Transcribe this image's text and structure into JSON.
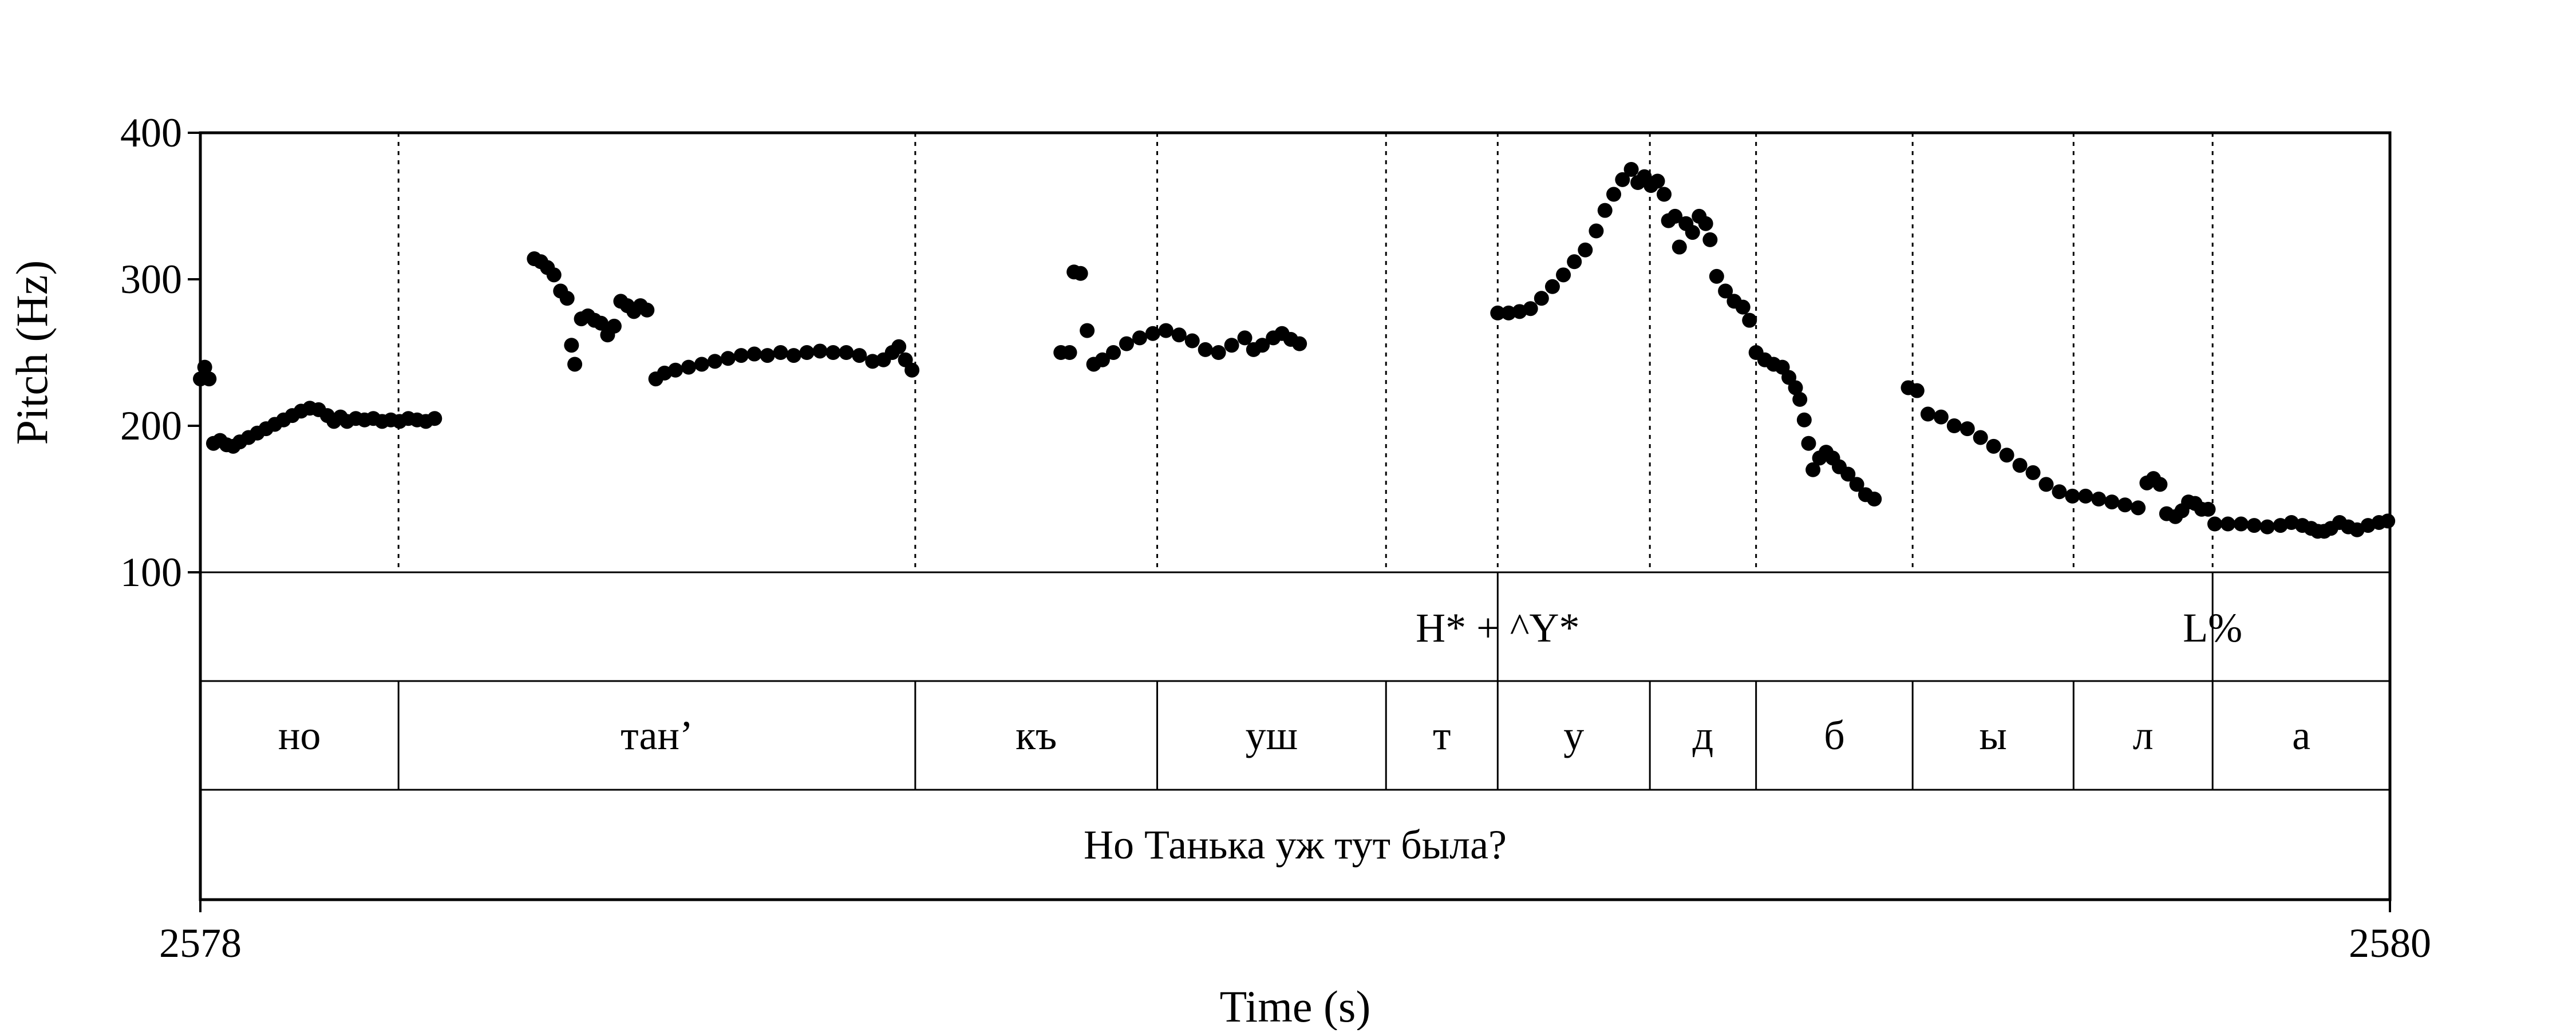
{
  "chart_data": {
    "type": "scatter",
    "title": "",
    "xlabel": "Time (s)",
    "ylabel": "Pitch (Hz)",
    "xlim": [
      2578,
      2580
    ],
    "ylim": [
      100,
      400
    ],
    "x_ticks": [
      "2578",
      "2580"
    ],
    "y_ticks": [
      "100",
      "200",
      "300",
      "400"
    ],
    "grid": false,
    "boundaries": [
      2578.181,
      2578.653,
      2578.874,
      2579.083,
      2579.185,
      2579.324,
      2579.421,
      2579.564,
      2579.711,
      2579.838
    ],
    "tiers": {
      "tones": [
        {
          "label": "H* + ^Y*",
          "x": 2579.185
        },
        {
          "label": "L%",
          "x": 2579.838
        }
      ],
      "segments": [
        {
          "label": "но",
          "start": 2578.0,
          "end": 2578.181
        },
        {
          "label": "тан’",
          "start": 2578.181,
          "end": 2578.653
        },
        {
          "label": "къ",
          "start": 2578.653,
          "end": 2578.874
        },
        {
          "label": "уш",
          "start": 2578.874,
          "end": 2579.083
        },
        {
          "label": "т",
          "start": 2579.083,
          "end": 2579.185
        },
        {
          "label": "у",
          "start": 2579.185,
          "end": 2579.324
        },
        {
          "label": "д",
          "start": 2579.324,
          "end": 2579.421
        },
        {
          "label": "б",
          "start": 2579.421,
          "end": 2579.564
        },
        {
          "label": "ы",
          "start": 2579.564,
          "end": 2579.711
        },
        {
          "label": "л",
          "start": 2579.711,
          "end": 2579.838
        },
        {
          "label": "а",
          "start": 2579.838,
          "end": 2580.0
        }
      ],
      "sentence": "Но Танька уж тут была?"
    },
    "series": [
      {
        "color": "#000000",
        "points": [
          [
            2578.0,
            232
          ],
          [
            2578.004,
            240
          ],
          [
            2578.008,
            232
          ],
          [
            2578.012,
            188
          ],
          [
            2578.018,
            190
          ],
          [
            2578.024,
            187
          ],
          [
            2578.03,
            186
          ],
          [
            2578.036,
            189
          ],
          [
            2578.044,
            192
          ],
          [
            2578.052,
            195
          ],
          [
            2578.06,
            198
          ],
          [
            2578.068,
            201
          ],
          [
            2578.076,
            204
          ],
          [
            2578.084,
            207
          ],
          [
            2578.092,
            210
          ],
          [
            2578.1,
            212
          ],
          [
            2578.108,
            211
          ],
          [
            2578.116,
            207
          ],
          [
            2578.122,
            203
          ],
          [
            2578.128,
            206
          ],
          [
            2578.134,
            203
          ],
          [
            2578.142,
            205
          ],
          [
            2578.15,
            204
          ],
          [
            2578.158,
            205
          ],
          [
            2578.166,
            203
          ],
          [
            2578.174,
            204
          ],
          [
            2578.182,
            203
          ],
          [
            2578.19,
            205
          ],
          [
            2578.198,
            204
          ],
          [
            2578.206,
            203
          ],
          [
            2578.214,
            205
          ],
          [
            2578.305,
            314
          ],
          [
            2578.311,
            312
          ],
          [
            2578.317,
            308
          ],
          [
            2578.323,
            303
          ],
          [
            2578.329,
            292
          ],
          [
            2578.335,
            287
          ],
          [
            2578.339,
            255
          ],
          [
            2578.342,
            242
          ],
          [
            2578.348,
            273
          ],
          [
            2578.354,
            275
          ],
          [
            2578.36,
            272
          ],
          [
            2578.366,
            270
          ],
          [
            2578.372,
            262
          ],
          [
            2578.378,
            268
          ],
          [
            2578.384,
            285
          ],
          [
            2578.39,
            282
          ],
          [
            2578.396,
            278
          ],
          [
            2578.402,
            282
          ],
          [
            2578.408,
            279
          ],
          [
            2578.416,
            232
          ],
          [
            2578.424,
            236
          ],
          [
            2578.434,
            238
          ],
          [
            2578.446,
            240
          ],
          [
            2578.458,
            242
          ],
          [
            2578.47,
            244
          ],
          [
            2578.482,
            246
          ],
          [
            2578.494,
            248
          ],
          [
            2578.506,
            249
          ],
          [
            2578.518,
            248
          ],
          [
            2578.53,
            250
          ],
          [
            2578.542,
            248
          ],
          [
            2578.554,
            250
          ],
          [
            2578.566,
            251
          ],
          [
            2578.578,
            250
          ],
          [
            2578.59,
            250
          ],
          [
            2578.602,
            248
          ],
          [
            2578.614,
            244
          ],
          [
            2578.624,
            245
          ],
          [
            2578.632,
            250
          ],
          [
            2578.638,
            254
          ],
          [
            2578.644,
            245
          ],
          [
            2578.65,
            238
          ],
          [
            2578.786,
            250
          ],
          [
            2578.794,
            250
          ],
          [
            2578.798,
            305
          ],
          [
            2578.804,
            304
          ],
          [
            2578.81,
            265
          ],
          [
            2578.816,
            242
          ],
          [
            2578.824,
            245
          ],
          [
            2578.834,
            250
          ],
          [
            2578.846,
            256
          ],
          [
            2578.858,
            260
          ],
          [
            2578.87,
            263
          ],
          [
            2578.882,
            265
          ],
          [
            2578.894,
            262
          ],
          [
            2578.906,
            258
          ],
          [
            2578.918,
            252
          ],
          [
            2578.93,
            250
          ],
          [
            2578.942,
            255
          ],
          [
            2578.954,
            260
          ],
          [
            2578.962,
            252
          ],
          [
            2578.97,
            255
          ],
          [
            2578.98,
            260
          ],
          [
            2578.988,
            263
          ],
          [
            2578.996,
            259
          ],
          [
            2579.004,
            256
          ],
          [
            2579.185,
            277
          ],
          [
            2579.195,
            277
          ],
          [
            2579.205,
            278
          ],
          [
            2579.215,
            280
          ],
          [
            2579.225,
            287
          ],
          [
            2579.235,
            295
          ],
          [
            2579.245,
            303
          ],
          [
            2579.255,
            312
          ],
          [
            2579.265,
            320
          ],
          [
            2579.275,
            333
          ],
          [
            2579.283,
            347
          ],
          [
            2579.291,
            358
          ],
          [
            2579.299,
            368
          ],
          [
            2579.307,
            375
          ],
          [
            2579.313,
            366
          ],
          [
            2579.319,
            370
          ],
          [
            2579.325,
            364
          ],
          [
            2579.331,
            367
          ],
          [
            2579.337,
            358
          ],
          [
            2579.341,
            340
          ],
          [
            2579.347,
            343
          ],
          [
            2579.351,
            322
          ],
          [
            2579.357,
            338
          ],
          [
            2579.363,
            332
          ],
          [
            2579.369,
            343
          ],
          [
            2579.375,
            338
          ],
          [
            2579.379,
            327
          ],
          [
            2579.385,
            302
          ],
          [
            2579.393,
            292
          ],
          [
            2579.401,
            285
          ],
          [
            2579.409,
            281
          ],
          [
            2579.415,
            272
          ],
          [
            2579.421,
            250
          ],
          [
            2579.429,
            245
          ],
          [
            2579.437,
            242
          ],
          [
            2579.445,
            240
          ],
          [
            2579.451,
            233
          ],
          [
            2579.457,
            226
          ],
          [
            2579.461,
            218
          ],
          [
            2579.465,
            204
          ],
          [
            2579.469,
            188
          ],
          [
            2579.473,
            170
          ],
          [
            2579.479,
            178
          ],
          [
            2579.485,
            182
          ],
          [
            2579.491,
            178
          ],
          [
            2579.497,
            172
          ],
          [
            2579.505,
            167
          ],
          [
            2579.513,
            160
          ],
          [
            2579.521,
            153
          ],
          [
            2579.529,
            150
          ],
          [
            2579.56,
            226
          ],
          [
            2579.568,
            224
          ],
          [
            2579.578,
            208
          ],
          [
            2579.59,
            206
          ],
          [
            2579.602,
            200
          ],
          [
            2579.614,
            198
          ],
          [
            2579.626,
            192
          ],
          [
            2579.638,
            186
          ],
          [
            2579.65,
            180
          ],
          [
            2579.662,
            173
          ],
          [
            2579.674,
            168
          ],
          [
            2579.686,
            160
          ],
          [
            2579.698,
            155
          ],
          [
            2579.71,
            152
          ],
          [
            2579.722,
            152
          ],
          [
            2579.734,
            150
          ],
          [
            2579.746,
            148
          ],
          [
            2579.758,
            146
          ],
          [
            2579.77,
            144
          ],
          [
            2579.778,
            161
          ],
          [
            2579.784,
            164
          ],
          [
            2579.79,
            160
          ],
          [
            2579.796,
            140
          ],
          [
            2579.804,
            138
          ],
          [
            2579.81,
            142
          ],
          [
            2579.816,
            148
          ],
          [
            2579.822,
            147
          ],
          [
            2579.828,
            143
          ],
          [
            2579.834,
            143
          ],
          [
            2579.84,
            133
          ],
          [
            2579.852,
            133
          ],
          [
            2579.864,
            133
          ],
          [
            2579.876,
            132
          ],
          [
            2579.888,
            131
          ],
          [
            2579.9,
            132
          ],
          [
            2579.91,
            134
          ],
          [
            2579.92,
            132
          ],
          [
            2579.928,
            130
          ],
          [
            2579.934,
            128
          ],
          [
            2579.94,
            128
          ],
          [
            2579.946,
            130
          ],
          [
            2579.954,
            134
          ],
          [
            2579.962,
            131
          ],
          [
            2579.97,
            129
          ],
          [
            2579.98,
            132
          ],
          [
            2579.99,
            134
          ],
          [
            2579.998,
            135
          ]
        ]
      }
    ]
  }
}
